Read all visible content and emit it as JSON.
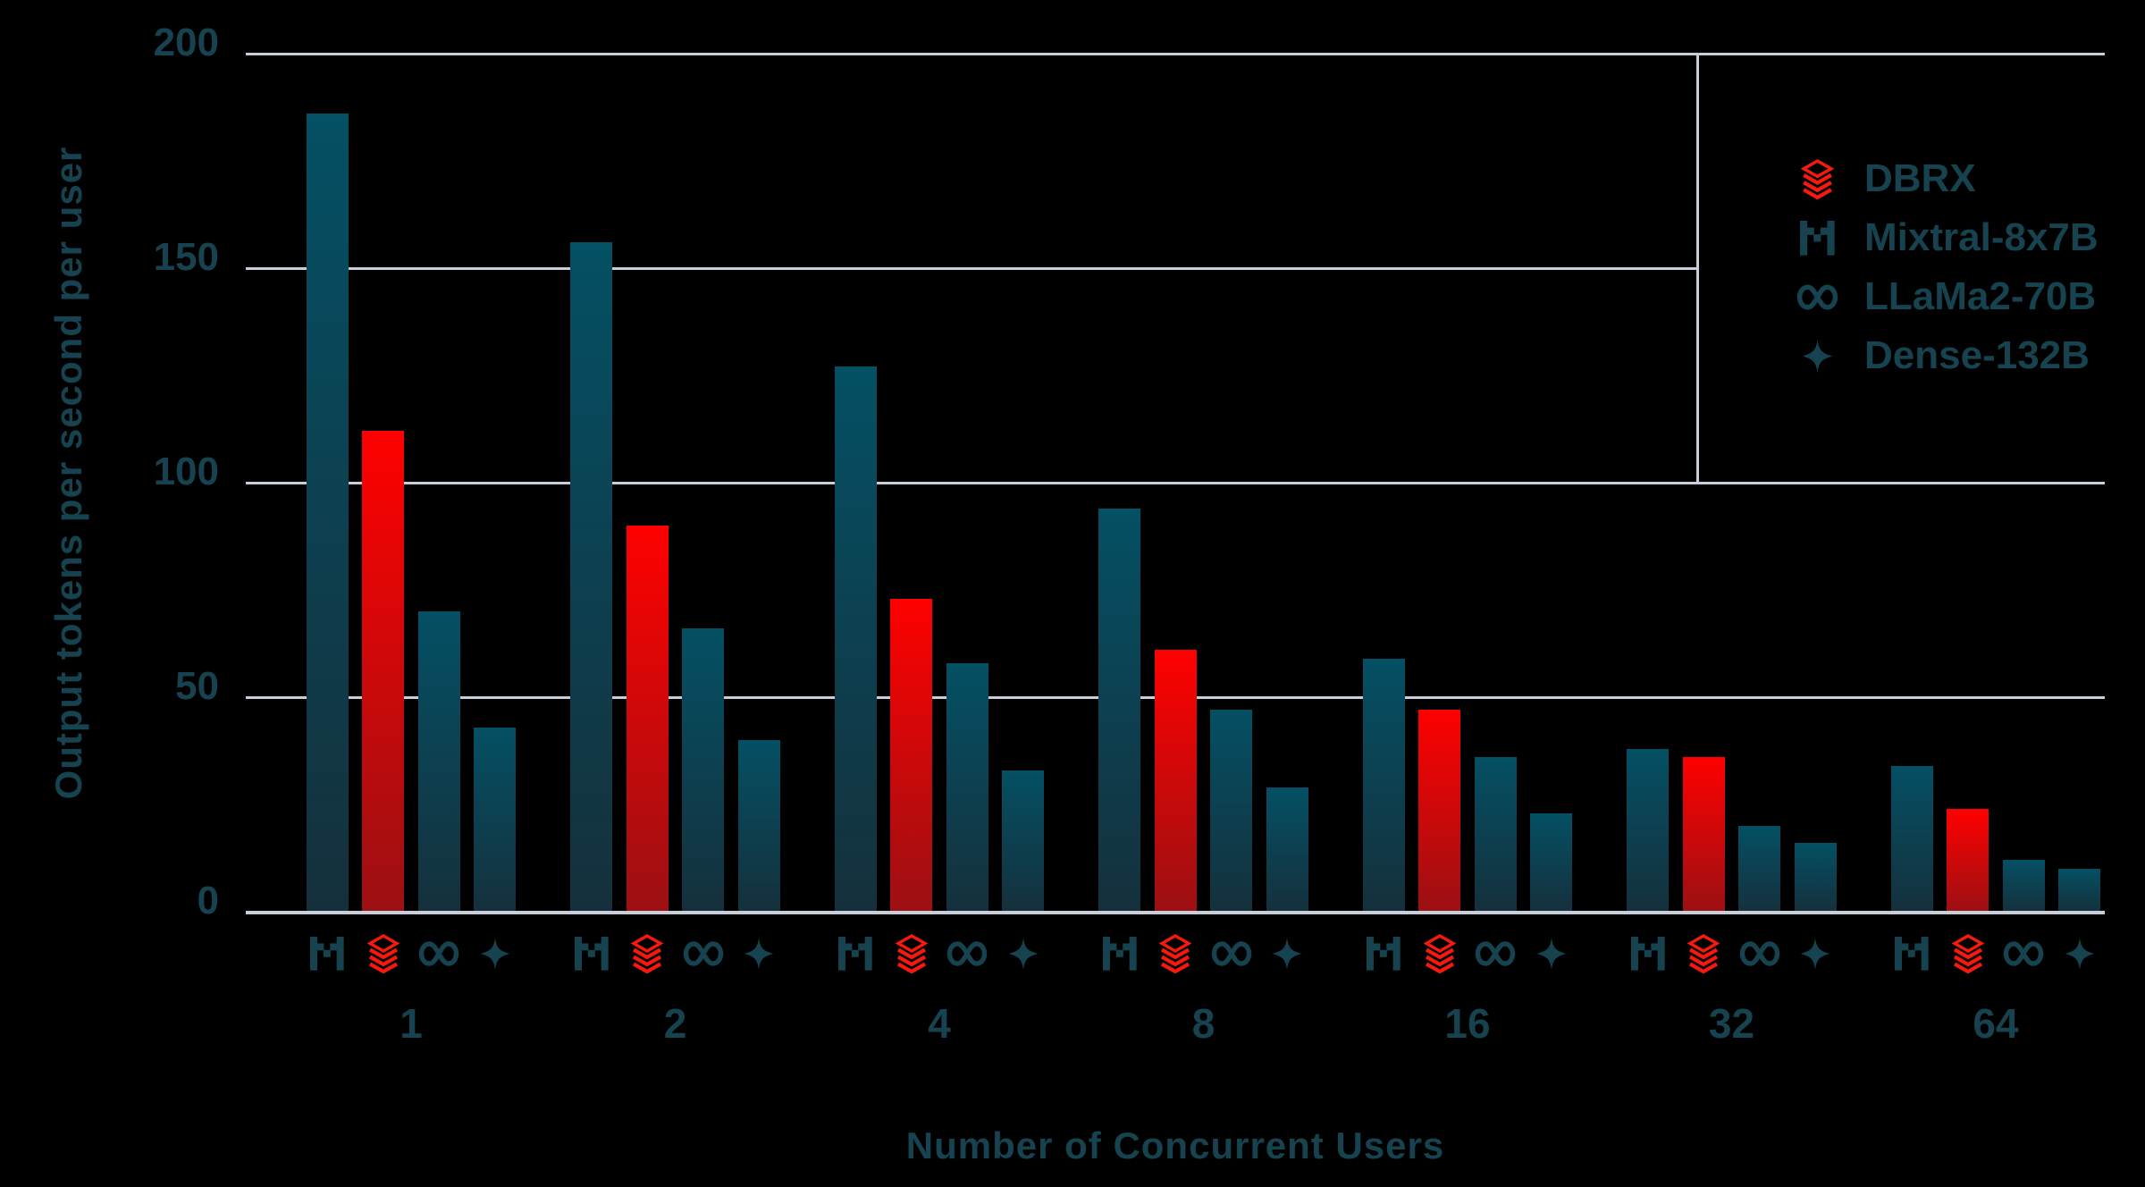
{
  "chart_data": {
    "type": "bar",
    "title": "",
    "xlabel": "Number of Concurrent Users",
    "ylabel": "Output tokens per second per user",
    "categories": [
      "1",
      "2",
      "4",
      "8",
      "16",
      "32",
      "64"
    ],
    "y_ticks": [
      0,
      50,
      100,
      150,
      200
    ],
    "ylim": [
      0,
      200
    ],
    "grid": true,
    "legend_position": "top-right",
    "series": [
      {
        "name": "Mixtral-8x7B",
        "icon": "mixtral-icon",
        "palette": "teal",
        "values": [
          186,
          156,
          127,
          94,
          59,
          38,
          34
        ]
      },
      {
        "name": "DBRX",
        "icon": "databricks-icon",
        "palette": "red",
        "values": [
          112,
          90,
          73,
          61,
          47,
          36,
          24
        ]
      },
      {
        "name": "LLaMa2-70B",
        "icon": "meta-icon",
        "palette": "teal",
        "values": [
          70,
          66,
          58,
          47,
          36,
          20,
          12
        ]
      },
      {
        "name": "Dense-132B",
        "icon": "sparkle-icon",
        "palette": "teal",
        "values": [
          43,
          40,
          33,
          29,
          23,
          16,
          10
        ]
      }
    ],
    "legend": [
      {
        "label": "DBRX",
        "icon": "databricks-icon",
        "icon_color": "red"
      },
      {
        "label": "Mixtral-8x7B",
        "icon": "mixtral-icon",
        "icon_color": "dark"
      },
      {
        "label": "LLaMa2-70B",
        "icon": "meta-icon",
        "icon_color": "dark"
      },
      {
        "label": "Dense-132B",
        "icon": "sparkle-icon",
        "icon_color": "dark"
      }
    ]
  },
  "colors": {
    "background": "#000000",
    "grid": "#c7cdd9",
    "text": "#16434f",
    "bar_teal_top": "#045064",
    "bar_teal_bottom": "#15303c",
    "bar_red_top": "#fe0100",
    "bar_red_bottom": "#9c1013",
    "icon_red": "#f5190f",
    "icon_dark": "#16434f"
  }
}
